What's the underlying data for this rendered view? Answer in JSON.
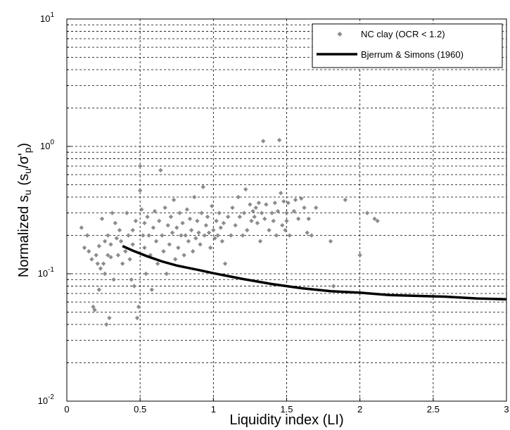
{
  "chart_data": {
    "type": "scatter",
    "xlabel": "Liquidity index (LI)",
    "ylabel_main": "Normalized s",
    "ylabel_sub": "u",
    "ylabel_paren": "(s",
    "ylabel_sub2": "u",
    "ylabel_slash": "/σ'",
    "ylabel_sub3": "p",
    "ylabel_close": ")",
    "xlim": [
      0,
      3
    ],
    "ylim": [
      0.01,
      10
    ],
    "yscale": "log",
    "grid": true,
    "legend_position": "top-right",
    "x_ticks": [
      "0",
      "0.5",
      "1",
      "1.5",
      "2",
      "2.5",
      "3"
    ],
    "x_tick_values": [
      0,
      0.5,
      1,
      1.5,
      2,
      2.5,
      3
    ],
    "y_ticks": [
      {
        "base": "10",
        "exp": "-2",
        "value": 0.01
      },
      {
        "base": "10",
        "exp": "-1",
        "value": 0.1
      },
      {
        "base": "10",
        "exp": "0",
        "value": 1
      },
      {
        "base": "10",
        "exp": "1",
        "value": 10
      }
    ],
    "series": [
      {
        "name": "NC clay (OCR < 1.2)",
        "kind": "markers",
        "color": "#8c8c8c",
        "points": [
          [
            0.1,
            0.23
          ],
          [
            0.12,
            0.16
          ],
          [
            0.14,
            0.2
          ],
          [
            0.15,
            0.15
          ],
          [
            0.17,
            0.13
          ],
          [
            0.18,
            0.055
          ],
          [
            0.19,
            0.052
          ],
          [
            0.2,
            0.14
          ],
          [
            0.21,
            0.12
          ],
          [
            0.22,
            0.165
          ],
          [
            0.22,
            0.075
          ],
          [
            0.23,
            0.11
          ],
          [
            0.24,
            0.27
          ],
          [
            0.25,
            0.12
          ],
          [
            0.26,
            0.18
          ],
          [
            0.26,
            0.1
          ],
          [
            0.27,
            0.04
          ],
          [
            0.28,
            0.14
          ],
          [
            0.28,
            0.2
          ],
          [
            0.29,
            0.045
          ],
          [
            0.3,
            0.17
          ],
          [
            0.3,
            0.135
          ],
          [
            0.31,
            0.3
          ],
          [
            0.32,
            0.09
          ],
          [
            0.33,
            0.25
          ],
          [
            0.34,
            0.19
          ],
          [
            0.35,
            0.14
          ],
          [
            0.36,
            0.22
          ],
          [
            0.37,
            0.18
          ],
          [
            0.38,
            0.12
          ],
          [
            0.4,
            0.15
          ],
          [
            0.41,
            0.3
          ],
          [
            0.42,
            0.2
          ],
          [
            0.43,
            0.13
          ],
          [
            0.44,
            0.09
          ],
          [
            0.45,
            0.22
          ],
          [
            0.45,
            0.17
          ],
          [
            0.46,
            0.08
          ],
          [
            0.47,
            0.26
          ],
          [
            0.48,
            0.045
          ],
          [
            0.49,
            0.055
          ],
          [
            0.5,
            0.7
          ],
          [
            0.5,
            0.45
          ],
          [
            0.51,
            0.32
          ],
          [
            0.52,
            0.2
          ],
          [
            0.53,
            0.25
          ],
          [
            0.53,
            0.16
          ],
          [
            0.54,
            0.1
          ],
          [
            0.55,
            0.28
          ],
          [
            0.56,
            0.2
          ],
          [
            0.57,
            0.14
          ],
          [
            0.58,
            0.075
          ],
          [
            0.59,
            0.23
          ],
          [
            0.6,
            0.31
          ],
          [
            0.61,
            0.18
          ],
          [
            0.62,
            0.12
          ],
          [
            0.63,
            0.26
          ],
          [
            0.64,
            0.65
          ],
          [
            0.65,
            0.2
          ],
          [
            0.66,
            0.15
          ],
          [
            0.67,
            0.33
          ],
          [
            0.68,
            0.1
          ],
          [
            0.69,
            0.24
          ],
          [
            0.7,
            0.17
          ],
          [
            0.71,
            0.28
          ],
          [
            0.72,
            0.21
          ],
          [
            0.73,
            0.38
          ],
          [
            0.74,
            0.13
          ],
          [
            0.75,
            0.23
          ],
          [
            0.76,
            0.16
          ],
          [
            0.77,
            0.3
          ],
          [
            0.78,
            0.2
          ],
          [
            0.79,
            0.25
          ],
          [
            0.8,
            0.14
          ],
          [
            0.81,
            0.2
          ],
          [
            0.82,
            0.32
          ],
          [
            0.83,
            0.18
          ],
          [
            0.84,
            0.27
          ],
          [
            0.85,
            0.22
          ],
          [
            0.86,
            0.15
          ],
          [
            0.87,
            0.4
          ],
          [
            0.88,
            0.19
          ],
          [
            0.89,
            0.26
          ],
          [
            0.9,
            0.21
          ],
          [
            0.91,
            0.17
          ],
          [
            0.92,
            0.3
          ],
          [
            0.93,
            0.48
          ],
          [
            0.94,
            0.2
          ],
          [
            0.95,
            0.24
          ],
          [
            0.96,
            0.28
          ],
          [
            0.97,
            0.21
          ],
          [
            0.98,
            0.16
          ],
          [
            0.99,
            0.34
          ],
          [
            1.0,
            0.22
          ],
          [
            1.01,
            0.19
          ],
          [
            1.02,
            0.26
          ],
          [
            1.03,
            0.2
          ],
          [
            1.04,
            0.3
          ],
          [
            1.05,
            0.23
          ],
          [
            1.06,
            0.18
          ],
          [
            1.07,
            0.25
          ],
          [
            1.08,
            0.12
          ],
          [
            1.1,
            0.28
          ],
          [
            1.12,
            0.2
          ],
          [
            1.13,
            0.33
          ],
          [
            1.15,
            0.24
          ],
          [
            1.17,
            0.4
          ],
          [
            1.18,
            0.28
          ],
          [
            1.2,
            0.2
          ],
          [
            1.21,
            0.3
          ],
          [
            1.22,
            0.46
          ],
          [
            1.23,
            0.22
          ],
          [
            1.25,
            0.35
          ],
          [
            1.26,
            0.26
          ],
          [
            1.27,
            0.31
          ],
          [
            1.28,
            0.28
          ],
          [
            1.29,
            0.33
          ],
          [
            1.3,
            0.25
          ],
          [
            1.31,
            0.36
          ],
          [
            1.32,
            0.18
          ],
          [
            1.33,
            0.3
          ],
          [
            1.34,
            1.1
          ],
          [
            1.35,
            0.27
          ],
          [
            1.36,
            0.35
          ],
          [
            1.38,
            0.22
          ],
          [
            1.4,
            0.3
          ],
          [
            1.41,
            0.26
          ],
          [
            1.42,
            0.36
          ],
          [
            1.43,
            0.2
          ],
          [
            1.44,
            0.31
          ],
          [
            1.45,
            1.12
          ],
          [
            1.46,
            0.43
          ],
          [
            1.47,
            0.24
          ],
          [
            1.48,
            0.37
          ],
          [
            1.49,
            0.22
          ],
          [
            1.5,
            0.3
          ],
          [
            1.5,
            0.26
          ],
          [
            1.51,
            0.36
          ],
          [
            1.52,
            0.2
          ],
          [
            1.55,
            0.31
          ],
          [
            1.56,
            0.38
          ],
          [
            1.58,
            0.27
          ],
          [
            1.6,
            0.39
          ],
          [
            1.62,
            0.33
          ],
          [
            1.64,
            0.21
          ],
          [
            1.65,
            0.27
          ],
          [
            1.67,
            0.2
          ],
          [
            1.7,
            0.33
          ],
          [
            1.8,
            0.18
          ],
          [
            1.82,
            0.08
          ],
          [
            1.9,
            0.38
          ],
          [
            2.0,
            0.14
          ],
          [
            2.05,
            0.3
          ],
          [
            2.1,
            0.27
          ],
          [
            2.12,
            0.26
          ]
        ]
      },
      {
        "name": "Bjerrum & Simons (1960)",
        "kind": "line",
        "color": "#000000",
        "x": [
          0.38,
          0.45,
          0.55,
          0.65,
          0.75,
          0.9,
          1.0,
          1.2,
          1.4,
          1.6,
          1.8,
          2.0,
          2.2,
          2.4,
          2.6,
          2.8,
          3.0
        ],
        "y": [
          0.165,
          0.152,
          0.137,
          0.125,
          0.116,
          0.107,
          0.101,
          0.091,
          0.083,
          0.077,
          0.073,
          0.071,
          0.068,
          0.067,
          0.066,
          0.064,
          0.063
        ]
      }
    ]
  }
}
